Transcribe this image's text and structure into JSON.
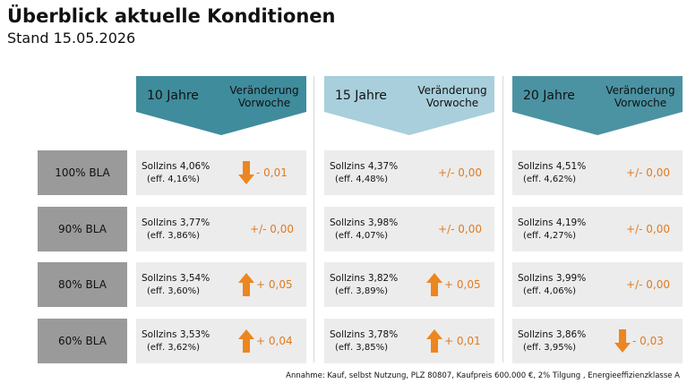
{
  "header": {
    "title": "Überblick aktuelle Konditionen",
    "subtitle": "Stand 15.05.2026"
  },
  "columns": [
    {
      "term": "10 Jahre",
      "change_label": "Veränderung Vorwoche",
      "color": "#3f8c9c"
    },
    {
      "term": "15 Jahre",
      "change_label": "Veränderung Vorwoche",
      "color": "#a8cfdb"
    },
    {
      "term": "20 Jahre",
      "change_label": "Veränderung Vorwoche",
      "color": "#4b93a2"
    }
  ],
  "rows": [
    {
      "label": "100% BLA",
      "cells": [
        {
          "sollzins": "Sollzins 4,06%",
          "eff": "(eff. 4,16%)",
          "change": "- 0,01",
          "direction": "down"
        },
        {
          "sollzins": "Sollzins 4,37%",
          "eff": "(eff. 4,48%)",
          "change": "+/- 0,00",
          "direction": "none"
        },
        {
          "sollzins": "Sollzins 4,51%",
          "eff": "(eff. 4,62%)",
          "change": "+/- 0,00",
          "direction": "none"
        }
      ]
    },
    {
      "label": "90% BLA",
      "cells": [
        {
          "sollzins": "Sollzins 3,77%",
          "eff": "(eff. 3,86%)",
          "change": "+/- 0,00",
          "direction": "none"
        },
        {
          "sollzins": "Sollzins 3,98%",
          "eff": "(eff. 4,07%)",
          "change": "+/- 0,00",
          "direction": "none"
        },
        {
          "sollzins": "Sollzins 4,19%",
          "eff": "(eff. 4,27%)",
          "change": "+/- 0,00",
          "direction": "none"
        }
      ]
    },
    {
      "label": "80% BLA",
      "cells": [
        {
          "sollzins": "Sollzins 3,54%",
          "eff": "(eff. 3,60%)",
          "change": "+ 0,05",
          "direction": "up"
        },
        {
          "sollzins": "Sollzins 3,82%",
          "eff": "(eff. 3,89%)",
          "change": "+ 0,05",
          "direction": "up"
        },
        {
          "sollzins": "Sollzins 3,99%",
          "eff": "(eff. 4,06%)",
          "change": "+/- 0,00",
          "direction": "none"
        }
      ]
    },
    {
      "label": "60% BLA",
      "cells": [
        {
          "sollzins": "Sollzins 3,53%",
          "eff": "(eff. 3,62%)",
          "change": "+ 0,04",
          "direction": "up"
        },
        {
          "sollzins": "Sollzins 3,78%",
          "eff": "(eff. 3,85%)",
          "change": "+ 0,01",
          "direction": "up"
        },
        {
          "sollzins": "Sollzins 3,86%",
          "eff": "(eff. 3,95%)",
          "change": "- 0,03",
          "direction": "down"
        }
      ]
    }
  ],
  "footnote": "Annahme: Kauf, selbst Nutzung, PLZ 80807, Kaufpreis 600.000 €, 2% Tilgung , Energieeffizienzklasse A"
}
